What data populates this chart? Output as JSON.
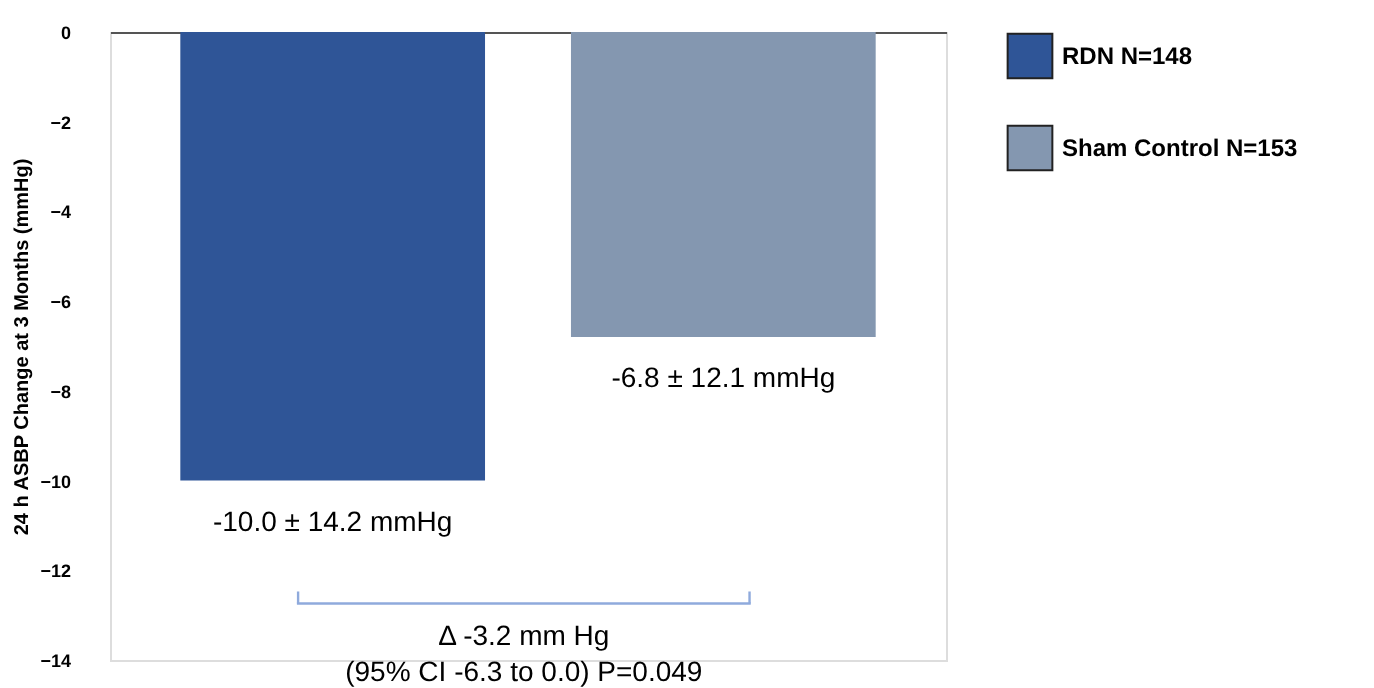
{
  "chart_data": {
    "type": "bar",
    "ylabel": "24 h ASBP Change at 3 Months (mmHg)",
    "categories": [
      null,
      null
    ],
    "series": [
      {
        "name": "RDN N=148",
        "color": "#2f5597",
        "values": [
          -10.0,
          null
        ],
        "value_labels": [
          "-10.0 ± 14.2 mmHg",
          null
        ]
      },
      {
        "name": "Sham Control N=153",
        "color": "#8497b0",
        "values": [
          null,
          -6.8
        ],
        "value_labels": [
          null,
          "-6.8 ± 12.1 mmHg"
        ]
      }
    ],
    "ylim": [
      -14,
      0
    ],
    "yticks": [
      0,
      -2,
      -4,
      -6,
      -8,
      -10,
      -12,
      -14
    ],
    "tick_labels": "y",
    "grid": false,
    "legend": "right",
    "annotations": [
      "Δ -3.2 mm Hg",
      "(95% CI -6.3 to 0.0) P=0.049"
    ]
  }
}
